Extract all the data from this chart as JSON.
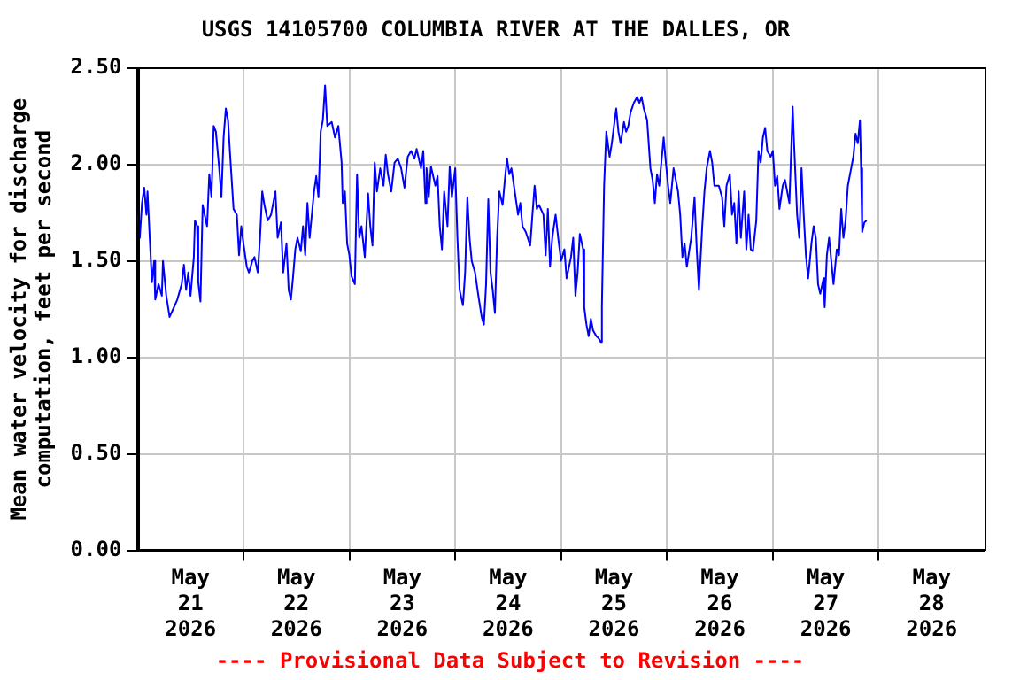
{
  "chart_data": {
    "type": "line",
    "title": "USGS 14105700 COLUMBIA RIVER AT THE DALLES, OR",
    "ylabel": "Mean water velocity for discharge computation, feet per second",
    "annotations": [
      "---- Provisional Data Subject to Revision ----"
    ],
    "xlim": [
      "2026-05-21T00:00",
      "2026-05-29T00:00"
    ],
    "xticks": [
      {
        "value": "2026-05-21T12:00",
        "label": "May\n21\n2026"
      },
      {
        "value": "2026-05-22T00:00",
        "label": null
      },
      {
        "value": "2026-05-22T12:00",
        "label": "May\n22\n2026"
      },
      {
        "value": "2026-05-23T00:00",
        "label": null
      },
      {
        "value": "2026-05-23T12:00",
        "label": "May\n23\n2026"
      },
      {
        "value": "2026-05-24T00:00",
        "label": null
      },
      {
        "value": "2026-05-24T12:00",
        "label": "May\n24\n2026"
      },
      {
        "value": "2026-05-25T00:00",
        "label": null
      },
      {
        "value": "2026-05-25T12:00",
        "label": "May\n25\n2026"
      },
      {
        "value": "2026-05-26T00:00",
        "label": null
      },
      {
        "value": "2026-05-26T12:00",
        "label": "May\n26\n2026"
      },
      {
        "value": "2026-05-27T00:00",
        "label": null
      },
      {
        "value": "2026-05-27T12:00",
        "label": "May\n27\n2026"
      },
      {
        "value": "2026-05-28T00:00",
        "label": null
      },
      {
        "value": "2026-05-28T12:00",
        "label": "May\n28\n2026"
      }
    ],
    "ylim": [
      0,
      2.5
    ],
    "yticks": [
      {
        "value": 0,
        "label": "0.00"
      },
      {
        "value": 0.5,
        "label": "0.50"
      },
      {
        "value": 1,
        "label": "1.00"
      },
      {
        "value": 1.5,
        "label": "1.50"
      },
      {
        "value": 2,
        "label": "2.00"
      },
      {
        "value": 2.5,
        "label": "2.50"
      }
    ],
    "grid": true,
    "series": [
      {
        "color": "#0000ff",
        "x": [
          "2026-05-21T00:00",
          "2026-05-21T00:30",
          "2026-05-21T01:00",
          "2026-05-21T01:30",
          "2026-05-21T02:00",
          "2026-05-21T02:15",
          "2026-05-21T02:45",
          "2026-05-21T03:15",
          "2026-05-21T03:45",
          "2026-05-21T04:00",
          "2026-05-21T04:45",
          "2026-05-21T05:30",
          "2026-05-21T05:45",
          "2026-05-21T06:30",
          "2026-05-21T07:15",
          "2026-05-21T08:15",
          "2026-05-21T09:00",
          "2026-05-21T10:00",
          "2026-05-21T10:30",
          "2026-05-21T11:00",
          "2026-05-21T11:30",
          "2026-05-21T12:00",
          "2026-05-21T12:45",
          "2026-05-21T13:00",
          "2026-05-21T13:30",
          "2026-05-21T13:45",
          "2026-05-21T14:15",
          "2026-05-21T14:45",
          "2026-05-21T15:45",
          "2026-05-21T16:15",
          "2026-05-21T16:45",
          "2026-05-21T17:15",
          "2026-05-21T17:45",
          "2026-05-21T18:30",
          "2026-05-21T19:00",
          "2026-05-21T19:30",
          "2026-05-21T20:00",
          "2026-05-21T20:30",
          "2026-05-21T21:00",
          "2026-05-21T21:45",
          "2026-05-21T22:30",
          "2026-05-21T23:00",
          "2026-05-21T23:30",
          "2026-05-22T00:00",
          "2026-05-22T00:45",
          "2026-05-22T01:15",
          "2026-05-22T02:00",
          "2026-05-22T02:30",
          "2026-05-22T03:15",
          "2026-05-22T03:45",
          "2026-05-22T04:15",
          "2026-05-22T04:45",
          "2026-05-22T05:30",
          "2026-05-22T06:15",
          "2026-05-22T07:15",
          "2026-05-22T07:45",
          "2026-05-22T08:30",
          "2026-05-22T09:00",
          "2026-05-22T09:45",
          "2026-05-22T10:15",
          "2026-05-22T10:45",
          "2026-05-22T11:15",
          "2026-05-22T11:45",
          "2026-05-22T12:15",
          "2026-05-22T13:00",
          "2026-05-22T13:30",
          "2026-05-22T14:00",
          "2026-05-22T14:30",
          "2026-05-22T15:00",
          "2026-05-22T16:00",
          "2026-05-22T16:30",
          "2026-05-22T17:00",
          "2026-05-22T17:30",
          "2026-05-22T18:00",
          "2026-05-22T18:30",
          "2026-05-22T19:00",
          "2026-05-22T20:00",
          "2026-05-22T20:45",
          "2026-05-22T21:30",
          "2026-05-22T22:15",
          "2026-05-22T22:30",
          "2026-05-22T23:00",
          "2026-05-22T23:30",
          "2026-05-23T00:00",
          "2026-05-23T00:30",
          "2026-05-23T01:15",
          "2026-05-23T01:45",
          "2026-05-23T02:15",
          "2026-05-23T02:45",
          "2026-05-23T03:30",
          "2026-05-23T04:15",
          "2026-05-23T04:45",
          "2026-05-23T05:15",
          "2026-05-23T05:45",
          "2026-05-23T06:15",
          "2026-05-23T07:00",
          "2026-05-23T07:45",
          "2026-05-23T08:15",
          "2026-05-23T08:45",
          "2026-05-23T09:30",
          "2026-05-23T10:15",
          "2026-05-23T11:00",
          "2026-05-23T11:45",
          "2026-05-23T12:30",
          "2026-05-23T13:15",
          "2026-05-23T14:00",
          "2026-05-23T14:45",
          "2026-05-23T15:15",
          "2026-05-23T16:15",
          "2026-05-23T16:45",
          "2026-05-23T17:15",
          "2026-05-23T17:30",
          "2026-05-23T18:00",
          "2026-05-23T18:30",
          "2026-05-23T19:30",
          "2026-05-23T20:00",
          "2026-05-23T20:30",
          "2026-05-23T21:00",
          "2026-05-23T21:30",
          "2026-05-23T22:15",
          "2026-05-23T22:45",
          "2026-05-23T23:15",
          "2026-05-24T00:00",
          "2026-05-24T00:30",
          "2026-05-24T01:00",
          "2026-05-24T01:45",
          "2026-05-24T02:15",
          "2026-05-24T02:45",
          "2026-05-24T03:15",
          "2026-05-24T03:45",
          "2026-05-24T04:30",
          "2026-05-24T05:15",
          "2026-05-24T06:00",
          "2026-05-24T06:30",
          "2026-05-24T07:00",
          "2026-05-24T07:30",
          "2026-05-24T08:00",
          "2026-05-24T08:30",
          "2026-05-24T09:00",
          "2026-05-24T09:30",
          "2026-05-24T10:00",
          "2026-05-24T10:45",
          "2026-05-24T11:15",
          "2026-05-24T11:45",
          "2026-05-24T12:15",
          "2026-05-24T12:45",
          "2026-05-24T13:30",
          "2026-05-24T14:15",
          "2026-05-24T14:45",
          "2026-05-24T15:15",
          "2026-05-24T16:00",
          "2026-05-24T17:00",
          "2026-05-24T17:30",
          "2026-05-24T18:00",
          "2026-05-24T18:30",
          "2026-05-24T19:00",
          "2026-05-24T20:00",
          "2026-05-24T20:30",
          "2026-05-24T21:00",
          "2026-05-24T21:30",
          "2026-05-24T22:00",
          "2026-05-24T22:45",
          "2026-05-24T23:30",
          "2026-05-25T00:00",
          "2026-05-25T00:45",
          "2026-05-25T01:15",
          "2026-05-25T02:15",
          "2026-05-25T02:45",
          "2026-05-25T03:15",
          "2026-05-25T03:45",
          "2026-05-25T04:15",
          "2026-05-25T05:00",
          "2026-05-25T05:15",
          "2026-05-25T05:45",
          "2026-05-25T06:15",
          "2026-05-25T06:45",
          "2026-05-25T07:15",
          "2026-05-25T08:00",
          "2026-05-25T08:30",
          "2026-05-25T09:00",
          "2026-05-25T09:15",
          "2026-05-25T09:45",
          "2026-05-25T10:15",
          "2026-05-25T11:00",
          "2026-05-25T11:30",
          "2026-05-25T12:00",
          "2026-05-25T12:30",
          "2026-05-25T13:00",
          "2026-05-25T13:30",
          "2026-05-25T14:15",
          "2026-05-25T14:45",
          "2026-05-25T15:15",
          "2026-05-25T15:45",
          "2026-05-25T16:30",
          "2026-05-25T17:15",
          "2026-05-25T17:45",
          "2026-05-25T18:15",
          "2026-05-25T18:45",
          "2026-05-25T19:30",
          "2026-05-25T20:15",
          "2026-05-25T20:45",
          "2026-05-25T21:15",
          "2026-05-25T21:45",
          "2026-05-25T22:15",
          "2026-05-25T23:15",
          "2026-05-25T23:45",
          "2026-05-26T00:15",
          "2026-05-26T00:45",
          "2026-05-26T01:30",
          "2026-05-26T02:30",
          "2026-05-26T03:00",
          "2026-05-26T03:30",
          "2026-05-26T04:00",
          "2026-05-26T04:30",
          "2026-05-26T05:30",
          "2026-05-26T06:15",
          "2026-05-26T06:45",
          "2026-05-26T07:15",
          "2026-05-26T08:00",
          "2026-05-26T08:30",
          "2026-05-26T09:00",
          "2026-05-26T09:45",
          "2026-05-26T10:15",
          "2026-05-26T10:45",
          "2026-05-26T11:45",
          "2026-05-26T12:30",
          "2026-05-26T13:00",
          "2026-05-26T13:30",
          "2026-05-26T14:15",
          "2026-05-26T14:45",
          "2026-05-26T15:15",
          "2026-05-26T15:45",
          "2026-05-26T16:15",
          "2026-05-26T16:45",
          "2026-05-26T17:30",
          "2026-05-26T18:00",
          "2026-05-26T18:30",
          "2026-05-26T19:00",
          "2026-05-26T19:30",
          "2026-05-26T20:15",
          "2026-05-26T20:45",
          "2026-05-26T21:15",
          "2026-05-26T21:45",
          "2026-05-26T22:15",
          "2026-05-26T22:45",
          "2026-05-26T23:30",
          "2026-05-27T00:00",
          "2026-05-27T00:30",
          "2026-05-27T01:00",
          "2026-05-27T01:30",
          "2026-05-27T02:15",
          "2026-05-27T02:45",
          "2026-05-27T03:15",
          "2026-05-27T03:45",
          "2026-05-27T04:30",
          "2026-05-27T04:45",
          "2026-05-27T05:30",
          "2026-05-27T06:00",
          "2026-05-27T06:30",
          "2026-05-27T07:00",
          "2026-05-27T07:30",
          "2026-05-27T08:00",
          "2026-05-27T08:45",
          "2026-05-27T09:15",
          "2026-05-27T09:45",
          "2026-05-27T10:15",
          "2026-05-27T10:45",
          "2026-05-27T11:30",
          "2026-05-27T11:45",
          "2026-05-27T12:15",
          "2026-05-27T12:45",
          "2026-05-27T13:15",
          "2026-05-27T13:45",
          "2026-05-27T14:30",
          "2026-05-27T15:00",
          "2026-05-27T15:30",
          "2026-05-27T16:00",
          "2026-05-27T16:30",
          "2026-05-27T17:00",
          "2026-05-27T17:45",
          "2026-05-27T18:15",
          "2026-05-27T18:45",
          "2026-05-27T19:15",
          "2026-05-27T19:45",
          "2026-05-27T20:00",
          "2026-05-27T20:15",
          "2026-05-27T20:45",
          "2026-05-27T21:15"
        ],
        "values": [
          1.74,
          1.62,
          1.8,
          1.88,
          1.74,
          1.86,
          1.62,
          1.39,
          1.5,
          1.3,
          1.38,
          1.32,
          1.5,
          1.32,
          1.21,
          1.26,
          1.3,
          1.38,
          1.48,
          1.35,
          1.44,
          1.32,
          1.52,
          1.71,
          1.68,
          1.39,
          1.29,
          1.79,
          1.68,
          1.95,
          1.83,
          2.2,
          2.17,
          1.98,
          1.83,
          2.14,
          2.29,
          2.23,
          2.04,
          1.77,
          1.74,
          1.53,
          1.68,
          1.59,
          1.47,
          1.44,
          1.5,
          1.52,
          1.44,
          1.62,
          1.86,
          1.79,
          1.71,
          1.74,
          1.86,
          1.62,
          1.7,
          1.44,
          1.59,
          1.35,
          1.3,
          1.42,
          1.56,
          1.62,
          1.55,
          1.68,
          1.53,
          1.8,
          1.62,
          1.86,
          1.94,
          1.83,
          2.17,
          2.23,
          2.41,
          2.2,
          2.22,
          2.14,
          2.2,
          2.01,
          1.8,
          1.86,
          1.59,
          1.53,
          1.42,
          1.38,
          1.95,
          1.62,
          1.68,
          1.52,
          1.85,
          1.68,
          1.58,
          2.01,
          1.86,
          1.98,
          1.89,
          2.05,
          1.95,
          1.86,
          2.01,
          2.03,
          1.98,
          1.88,
          2.04,
          2.07,
          2.03,
          2.08,
          1.98,
          2.07,
          1.8,
          1.98,
          1.83,
          1.99,
          1.89,
          1.94,
          1.68,
          1.56,
          1.86,
          1.68,
          1.99,
          1.83,
          1.98,
          1.62,
          1.35,
          1.27,
          1.44,
          1.83,
          1.62,
          1.5,
          1.44,
          1.32,
          1.21,
          1.17,
          1.38,
          1.82,
          1.44,
          1.35,
          1.23,
          1.62,
          1.86,
          1.79,
          1.92,
          2.03,
          1.95,
          1.98,
          1.86,
          1.74,
          1.8,
          1.68,
          1.65,
          1.58,
          1.74,
          1.89,
          1.77,
          1.79,
          1.74,
          1.53,
          1.77,
          1.47,
          1.62,
          1.74,
          1.59,
          1.5,
          1.56,
          1.41,
          1.52,
          1.62,
          1.32,
          1.44,
          1.64,
          1.56,
          1.26,
          1.17,
          1.11,
          1.2,
          1.14,
          1.11,
          1.1,
          1.08,
          1.26,
          1.89,
          2.17,
          2.04,
          2.11,
          2.2,
          2.29,
          2.17,
          2.11,
          2.22,
          2.17,
          2.2,
          2.27,
          2.32,
          2.35,
          2.32,
          2.35,
          2.29,
          2.23,
          1.98,
          1.92,
          1.8,
          1.95,
          1.89,
          2.14,
          2.01,
          1.89,
          1.8,
          1.98,
          1.86,
          1.74,
          1.52,
          1.59,
          1.47,
          1.62,
          1.83,
          1.56,
          1.35,
          1.68,
          1.86,
          1.98,
          2.07,
          2.01,
          1.89,
          1.89,
          1.83,
          1.68,
          1.89,
          1.95,
          1.74,
          1.8,
          1.59,
          1.86,
          1.62,
          1.86,
          1.56,
          1.74,
          1.56,
          1.55,
          1.71,
          2.07,
          2.01,
          2.14,
          2.19,
          2.07,
          2.04,
          2.07,
          1.89,
          1.94,
          1.77,
          1.89,
          1.92,
          1.86,
          1.8,
          2.3,
          2.14,
          1.74,
          1.62,
          1.98,
          1.74,
          1.53,
          1.41,
          1.59,
          1.68,
          1.62,
          1.38,
          1.33,
          1.41,
          1.26,
          1.53,
          1.62,
          1.5,
          1.38,
          1.56,
          1.53,
          1.77,
          1.62,
          1.71,
          1.89,
          1.98,
          2.04,
          2.16,
          2.11,
          2.23,
          1.98,
          1.65,
          1.7,
          1.71
        ]
      }
    ]
  }
}
